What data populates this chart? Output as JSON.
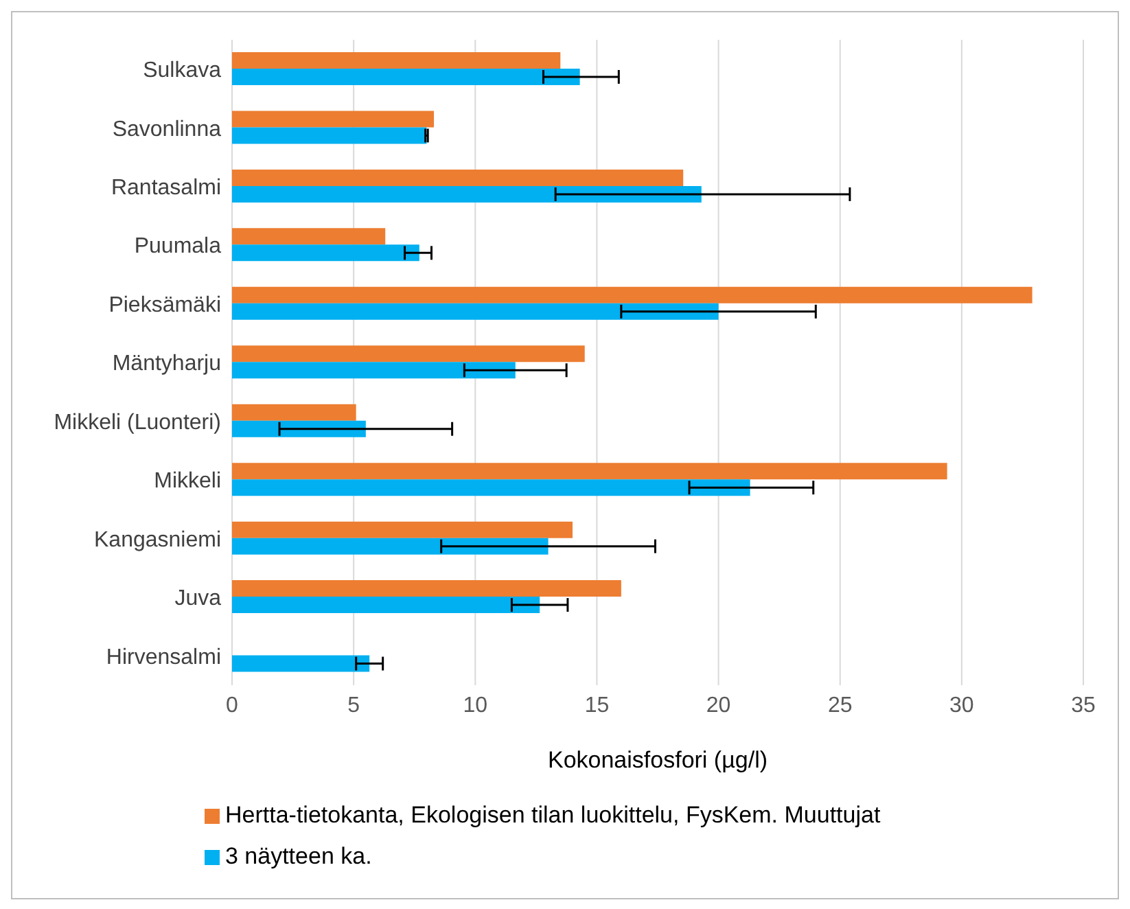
{
  "chart_data": {
    "type": "bar",
    "orientation": "horizontal",
    "xlabel": "Kokonaisfosfori (µg/l)",
    "categories": [
      "Sulkava",
      "Savonlinna",
      "Rantasalmi",
      "Puumala",
      "Pieksämäki",
      "Mäntyharju",
      "Mikkeli (Luonteri)",
      "Mikkeli",
      "Kangasniemi",
      "Juva",
      "Hirvensalmi"
    ],
    "series": [
      {
        "name": "Hertta-tietokanta, Ekologisen tilan luokittelu, FysKem. Muuttujat",
        "color": "#ed7d31",
        "values": [
          13.5,
          8.3,
          18.55,
          6.3,
          32.9,
          14.5,
          5.1,
          29.4,
          14.0,
          16.0,
          null
        ]
      },
      {
        "name": "3 näytteen ka.",
        "color": "#00b0f0",
        "values": [
          14.3,
          8.0,
          19.3,
          7.7,
          20.0,
          11.65,
          5.5,
          21.3,
          13.0,
          12.65,
          5.65
        ],
        "errors": [
          [
            12.8,
            15.9
          ],
          [
            7.95,
            8.05
          ],
          [
            13.3,
            25.4
          ],
          [
            7.1,
            8.2
          ],
          [
            16.0,
            24.0
          ],
          [
            9.55,
            13.75
          ],
          [
            1.95,
            9.05
          ],
          [
            18.8,
            23.9
          ],
          [
            8.6,
            17.4
          ],
          [
            11.5,
            13.8
          ],
          [
            5.1,
            6.2
          ]
        ]
      }
    ],
    "xlim": [
      0,
      35
    ],
    "xticks": [
      0,
      5,
      10,
      15,
      20,
      25,
      30,
      35
    ],
    "grid": "x",
    "legend": "bottom"
  }
}
